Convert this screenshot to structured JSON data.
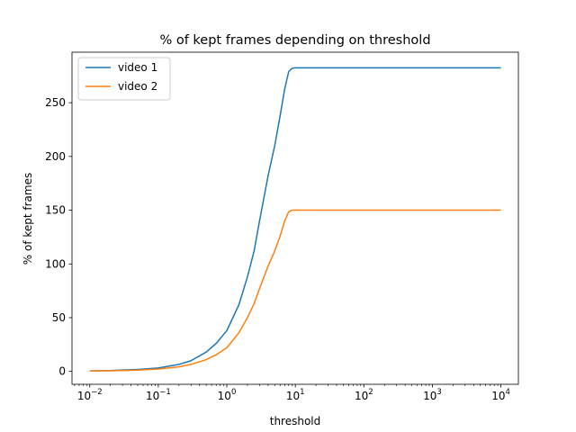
{
  "chart_data": {
    "type": "line",
    "title": "% of kept frames depending on threshold",
    "xlabel": "threshold",
    "ylabel": "% of kept frames",
    "xscale": "log",
    "xlim": [
      0.0055,
      18000
    ],
    "ylim": [
      -12,
      297
    ],
    "xticks": [
      {
        "value": 0.01,
        "base": "10",
        "exp": "−2"
      },
      {
        "value": 0.1,
        "base": "10",
        "exp": "−1"
      },
      {
        "value": 1,
        "base": "10",
        "exp": "0"
      },
      {
        "value": 10,
        "base": "10",
        "exp": "1"
      },
      {
        "value": 100,
        "base": "10",
        "exp": "2"
      },
      {
        "value": 1000,
        "base": "10",
        "exp": "3"
      },
      {
        "value": 10000,
        "base": "10",
        "exp": "4"
      }
    ],
    "yticks": [
      0,
      50,
      100,
      150,
      200,
      250
    ],
    "grid": false,
    "legend_position": "top-left",
    "series": [
      {
        "name": "video 1",
        "color": "#1f77b4",
        "points": [
          [
            0.01,
            0.5
          ],
          [
            0.02,
            0.8
          ],
          [
            0.05,
            1.8
          ],
          [
            0.1,
            3.2
          ],
          [
            0.2,
            6.5
          ],
          [
            0.3,
            10
          ],
          [
            0.5,
            18
          ],
          [
            0.7,
            26
          ],
          [
            1,
            38
          ],
          [
            1.5,
            62
          ],
          [
            2,
            88
          ],
          [
            2.5,
            112
          ],
          [
            3,
            140
          ],
          [
            4,
            182
          ],
          [
            5,
            210
          ],
          [
            6,
            238
          ],
          [
            7,
            263
          ],
          [
            8,
            279
          ],
          [
            9,
            282
          ],
          [
            10,
            282.5
          ],
          [
            100,
            282.5
          ],
          [
            1000,
            282.5
          ],
          [
            10000,
            282.5
          ]
        ]
      },
      {
        "name": "video 2",
        "color": "#ff7f0e",
        "points": [
          [
            0.01,
            0.4
          ],
          [
            0.02,
            0.6
          ],
          [
            0.05,
            1.2
          ],
          [
            0.1,
            2.2
          ],
          [
            0.2,
            4.2
          ],
          [
            0.3,
            6.5
          ],
          [
            0.5,
            11
          ],
          [
            0.7,
            15.5
          ],
          [
            1,
            22
          ],
          [
            1.5,
            36
          ],
          [
            2,
            50
          ],
          [
            2.5,
            63
          ],
          [
            3,
            77
          ],
          [
            4,
            98
          ],
          [
            5,
            112
          ],
          [
            6,
            126
          ],
          [
            7,
            140
          ],
          [
            8,
            148.5
          ],
          [
            9,
            150
          ],
          [
            10,
            150
          ],
          [
            100,
            150
          ],
          [
            1000,
            150
          ],
          [
            10000,
            150
          ]
        ]
      }
    ]
  }
}
